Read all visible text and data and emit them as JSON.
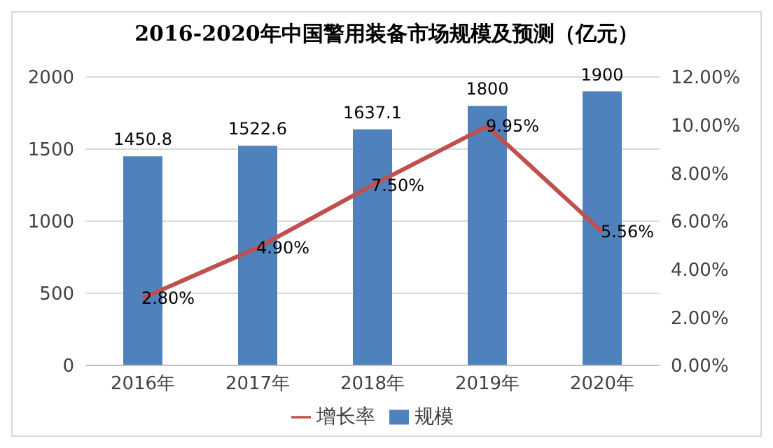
{
  "chart_data": {
    "type": "bar",
    "title": "2016-2020年中国警用装备市场规模及预测（亿元）",
    "categories": [
      "2016年",
      "2017年",
      "2018年",
      "2019年",
      "2020年"
    ],
    "series": [
      {
        "name": "规模",
        "color": "#4f81bd",
        "values": [
          1450.8,
          1522.6,
          1637.1,
          1800,
          1900
        ],
        "value_labels": [
          "1450.8",
          "1522.6",
          "1637.1",
          "1800",
          "1900"
        ]
      },
      {
        "name": "增长率",
        "type": "line",
        "axis": "y2",
        "color": "#c0504d",
        "values": [
          2.8,
          4.9,
          7.5,
          9.95,
          5.56
        ],
        "value_labels": [
          "2.80%",
          "4.90%",
          "7.50%",
          "9.95%",
          "5.56%"
        ]
      }
    ],
    "ylim": [
      0,
      2000
    ],
    "yticks": [
      0,
      500,
      1000,
      1500,
      2000
    ],
    "y2lim": [
      0,
      12
    ],
    "y2ticks": [
      {
        "value": 0,
        "label": "0.00%"
      },
      {
        "value": 2,
        "label": "2.00%"
      },
      {
        "value": 4,
        "label": "4.00%"
      },
      {
        "value": 6,
        "label": "6.00%"
      },
      {
        "value": 8,
        "label": "8.00%"
      },
      {
        "value": 10,
        "label": "10.00%"
      },
      {
        "value": 12,
        "label": "12.00%"
      }
    ],
    "grid": "y",
    "legend": "bottom",
    "marker": "none",
    "line_style": "solid"
  }
}
